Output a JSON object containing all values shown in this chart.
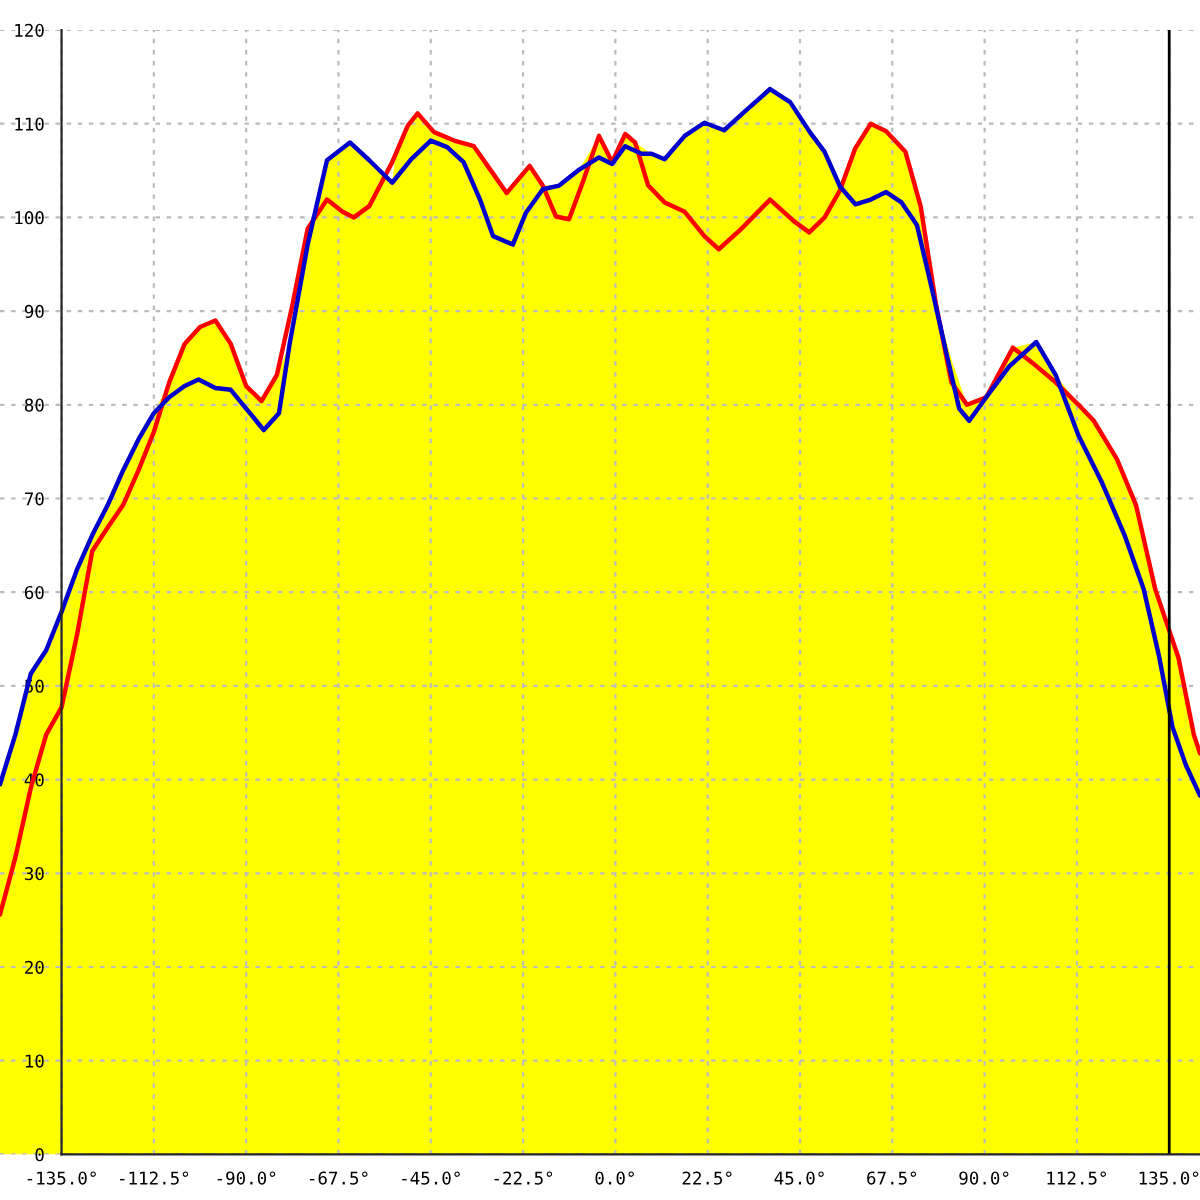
{
  "chart_data": {
    "type": "line",
    "xlim": [
      -150,
      142.5
    ],
    "ylim": [
      0,
      120
    ],
    "xticks": [
      {
        "value": -135,
        "label": "-135.0°"
      },
      {
        "value": -112.5,
        "label": "-112.5°"
      },
      {
        "value": -90,
        "label": "-90.0°"
      },
      {
        "value": -67.5,
        "label": "-67.5°"
      },
      {
        "value": -45,
        "label": "-45.0°"
      },
      {
        "value": -22.5,
        "label": "-22.5°"
      },
      {
        "value": 0,
        "label": "0.0°"
      },
      {
        "value": 22.5,
        "label": "22.5°"
      },
      {
        "value": 45,
        "label": "45.0°"
      },
      {
        "value": 67.5,
        "label": "67.5°"
      },
      {
        "value": 90,
        "label": "90.0°"
      },
      {
        "value": 112.5,
        "label": "112.5°"
      },
      {
        "value": 135,
        "label": "135.0°"
      }
    ],
    "yticks": [
      0,
      10,
      20,
      30,
      40,
      50,
      60,
      70,
      80,
      90,
      100,
      110,
      120
    ],
    "grid": true,
    "legend": false,
    "ref_lines": [
      {
        "axis": "x",
        "value": 135,
        "color": "#000000"
      }
    ],
    "series": [
      {
        "type": "area",
        "color": "#ffff00",
        "x": [
          -150,
          -146.25,
          -142.5,
          -138.75,
          -135,
          -131.25,
          -127.5,
          -123.75,
          -120,
          -116.25,
          -112.5,
          -108.75,
          -105,
          -101.25,
          -97.5,
          -93.75,
          -90,
          -86.25,
          -82.5,
          -79.4,
          -75,
          -70.3,
          -64.7,
          -60,
          -54.4,
          -53.8,
          -50.6,
          -48.2,
          -44.2,
          -39.3,
          -34.5,
          -30.5,
          -26.5,
          -20.9,
          -17.7,
          -13.7,
          -8.8,
          -4,
          -0.8,
          2.4,
          4.8,
          8.8,
          12,
          16.9,
          21.7,
          26.5,
          31.3,
          37.7,
          42.6,
          47.4,
          51,
          54.75,
          58.5,
          62.25,
          66,
          70.7,
          74.4,
          78.2,
          81.9,
          85.7,
          90.4,
          96.9,
          102.6,
          107.3,
          112.9,
          116.6,
          122.25,
          126.9,
          131.6,
          137.25,
          141,
          142.5
        ],
        "values": [
          39.5,
          44.8,
          51.3,
          53.8,
          57.9,
          62.4,
          66.1,
          69.3,
          73.0,
          76.3,
          79.1,
          82.4,
          86.5,
          88.3,
          89.0,
          86.5,
          82.0,
          80.4,
          83.2,
          86.5,
          97.1,
          106.1,
          108.0,
          106.1,
          103.7,
          105.9,
          109.8,
          111.1,
          109.1,
          108.2,
          107.6,
          105.1,
          102.6,
          105.5,
          103.4,
          103.4,
          105.1,
          108.7,
          105.9,
          108.9,
          108.0,
          106.8,
          106.2,
          108.7,
          110.1,
          109.3,
          111.2,
          113.7,
          112.3,
          109.1,
          107.0,
          103.3,
          107.4,
          110.0,
          109.2,
          107.0,
          101.2,
          90.6,
          84.9,
          80.0,
          80.8,
          86.1,
          86.7,
          83.2,
          80.0,
          78.3,
          74.2,
          69.3,
          60.3,
          53.0,
          44.8,
          42.8
        ]
      },
      {
        "color": "#ff0000",
        "x": [
          -150,
          -146.25,
          -142.5,
          -138.75,
          -135,
          -131.25,
          -127.5,
          -123.75,
          -120,
          -116.25,
          -112.5,
          -108.75,
          -105,
          -101.25,
          -97.5,
          -93.75,
          -90,
          -86.25,
          -82.5,
          -78.75,
          -75,
          -70.3,
          -66.5,
          -63.75,
          -60,
          -54.4,
          -50.6,
          -48.2,
          -44.2,
          -39.3,
          -34.5,
          -30.5,
          -26.5,
          -20.9,
          -17.7,
          -14.5,
          -11.3,
          -8,
          -4,
          -0.8,
          2.4,
          4.8,
          8,
          12,
          16.9,
          21.7,
          25.2,
          30.5,
          37.7,
          43.5,
          47.25,
          51,
          54.75,
          58.5,
          62.25,
          66,
          70.7,
          74.4,
          78.2,
          81.9,
          85.7,
          90.4,
          96.9,
          101.6,
          107.3,
          112.9,
          116.6,
          122.25,
          126.9,
          131.6,
          137.25,
          141,
          142.5
        ],
        "values": [
          25.6,
          31.7,
          39.1,
          44.8,
          47.7,
          55.4,
          64.4,
          66.9,
          69.3,
          73.0,
          77.1,
          82.4,
          86.5,
          88.3,
          89.0,
          86.5,
          82.0,
          80.4,
          83.2,
          90.6,
          98.8,
          101.9,
          100.6,
          100.0,
          101.2,
          105.9,
          109.8,
          111.1,
          109.1,
          108.2,
          107.6,
          105.1,
          102.6,
          105.5,
          103.4,
          100.1,
          99.8,
          103.7,
          108.7,
          105.9,
          108.9,
          108.0,
          103.4,
          101.6,
          100.6,
          98.0,
          96.6,
          98.7,
          101.9,
          99.6,
          98.4,
          100.0,
          102.9,
          107.4,
          110.0,
          109.2,
          107.0,
          101.2,
          90.6,
          82.4,
          80.0,
          80.8,
          86.1,
          84.5,
          82.4,
          80.0,
          78.3,
          74.2,
          69.3,
          60.3,
          53.0,
          44.8,
          42.8
        ]
      },
      {
        "color": "#0000cc",
        "x": [
          -150,
          -146.25,
          -142.5,
          -138.75,
          -135,
          -131.25,
          -127.5,
          -123.75,
          -120,
          -116.25,
          -112.5,
          -108.75,
          -105,
          -101.6,
          -97.5,
          -93.75,
          -90,
          -85.7,
          -82,
          -79.4,
          -75,
          -70.3,
          -64.7,
          -60,
          -54.4,
          -49.8,
          -45,
          -41,
          -37,
          -33,
          -29.8,
          -25,
          -21.8,
          -17.7,
          -13.7,
          -8.8,
          -4,
          -0.8,
          2.4,
          6.4,
          8.8,
          12,
          16.9,
          21.7,
          26.5,
          31.3,
          37.7,
          42.6,
          47.4,
          51,
          54.75,
          58.5,
          62.25,
          66,
          69.75,
          73.5,
          77.25,
          81,
          83.8,
          86.25,
          90.4,
          96,
          102.6,
          107.3,
          112.9,
          118.5,
          124.1,
          128.8,
          132.6,
          135.8,
          139.1,
          142.5
        ],
        "values": [
          39.5,
          44.8,
          51.3,
          53.8,
          57.9,
          62.4,
          66.1,
          69.3,
          73.0,
          76.3,
          79.1,
          80.8,
          82.0,
          82.7,
          81.8,
          81.6,
          79.6,
          77.3,
          79.1,
          86.5,
          97.1,
          106.1,
          108.0,
          106.1,
          103.7,
          106.2,
          108.2,
          107.5,
          105.9,
          101.9,
          98.0,
          97.1,
          100.5,
          103.0,
          103.4,
          105.1,
          106.4,
          105.7,
          107.6,
          106.8,
          106.8,
          106.2,
          108.7,
          110.1,
          109.3,
          111.2,
          113.7,
          112.3,
          109.1,
          107.0,
          103.3,
          101.4,
          101.9,
          102.7,
          101.6,
          99.2,
          92.2,
          84.9,
          79.6,
          78.3,
          80.8,
          84.1,
          86.7,
          83.2,
          76.7,
          71.8,
          66.1,
          60.3,
          53.0,
          45.6,
          41.5,
          38.3
        ]
      }
    ]
  }
}
